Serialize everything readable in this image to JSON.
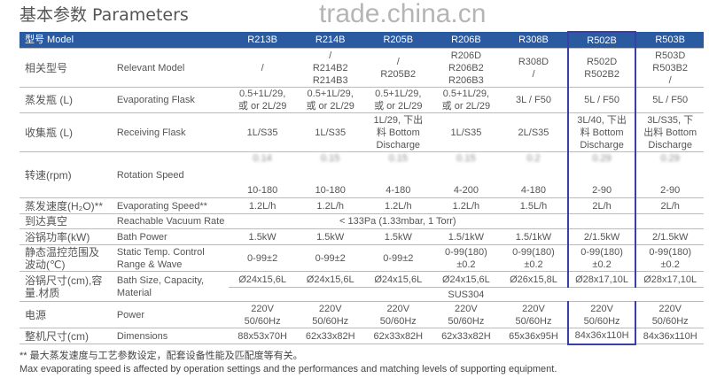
{
  "title": "基本参数 Parameters",
  "watermark": "trade.china.cn",
  "header": {
    "label": "型号 Model",
    "models": [
      "R213B",
      "R214B",
      "R205B",
      "R206B",
      "R308B",
      "R502B",
      "R503B"
    ]
  },
  "rows": [
    {
      "cn": "相关型号",
      "en": "Relevant Model",
      "v": [
        "/",
        "/\nR214B2\nR214B3",
        "/\nR205B2",
        "R206D\nR206B2\nR206B3",
        "R308D\n/",
        "R502D\nR502B2",
        "R503D\nR503B2\n/"
      ]
    },
    {
      "cn": "蒸发瓶 (L)",
      "en": "Evaporating Flask",
      "v": [
        "0.5+1L/29,\n或 or 2L/29",
        "0.5+1L/29,\n或 or 2L/29",
        "0.5+1L/29,\n或 or 2L/29",
        "0.5+1L/29,\n或 or 2L/29",
        "3L / F50",
        "5L / F50",
        "5L / F50"
      ]
    },
    {
      "cn": "收集瓶 (L)",
      "en": "Receiving Flask",
      "v": [
        "1L/S35",
        "1L/S35",
        "1L/29, 下出\n料 Bottom\nDischarge",
        "1L/S35",
        "2L/S35",
        "3L/40, 下出\n料 Bottom\nDischarge",
        "3L/S35, 下\n出料 Bottom\nDischarge"
      ]
    },
    {
      "cn": "转速(rpm)",
      "en": "Rotation Speed",
      "top": [
        "0.14",
        "0.15",
        "0.15",
        "0.15",
        "0.2",
        "0.29",
        "0.29"
      ],
      "v": [
        "10-180",
        "10-180",
        "4-180",
        "4-200",
        "4-180",
        "2-90",
        "2-90"
      ]
    },
    {
      "cn": "蒸发速度(H₂O)**",
      "en": "Evaporating Speed**",
      "v": [
        "1.2L/h",
        "1.2L/h",
        "1.2L/h",
        "1.2L/h",
        "1.5L/h",
        "2L/h",
        "2L/h"
      ]
    },
    {
      "cn": "到达真空",
      "en": "Reachable Vacuum Rate",
      "span": "< 133Pa (1.33mbar, 1 Torr)"
    },
    {
      "cn": "浴锅功率(kW)",
      "en": "Bath Power",
      "v": [
        "1.5kW",
        "1.5kW",
        "1.5kW",
        "1.5/1kW",
        "1.5/1kW",
        "2/1.5kW",
        "2/1.5kW"
      ]
    },
    {
      "cn": "静态温控范围及\n波动(℃)",
      "en": "Static Temp. Control\nRange & Wave",
      "v": [
        "0-99±2",
        "0-99±2",
        "0-99±2",
        "0-99(180)\n±0.2",
        "0-99(180)\n±0.2",
        "0-99(180)\n±0.2",
        "0-99(180)\n±0.2"
      ]
    },
    {
      "cn": "浴锅尺寸(cm),容\n量.材质",
      "en": "Bath Size, Capacity,\nMaterial",
      "v": [
        "Ø24x15,6L",
        "Ø24x15,6L",
        "Ø24x15,6L",
        "Ø24x15,6L",
        "Ø26x15,8L",
        "Ø28x17,10L",
        "Ø28x17,10L"
      ],
      "material": "SUS304"
    },
    {
      "cn": "电源",
      "en": "Power",
      "v": [
        "220V\n50/60Hz",
        "220V\n50/60Hz",
        "220V\n50/60Hz",
        "220V\n50/60Hz",
        "220V\n50/60Hz",
        "220V\n50/60Hz",
        "220V\n50/60Hz"
      ]
    },
    {
      "cn": "整机尺寸(cm)",
      "en": "Dimensions",
      "v": [
        "88x53x70H",
        "62x33x82H",
        "62x33x82H",
        "62x33x82H",
        "65x36x95H",
        "84x36x110H",
        "84x36x110H"
      ]
    }
  ],
  "notes": [
    "** 最大蒸发速度与工艺参数设定，配套设备性能及匹配度等有关。",
    "Max evaporating speed is affected by operation settings and the performances and matching levels of supporting equipment."
  ],
  "colors": {
    "header": "#2a5aa0",
    "highlight": "#3a3fa8"
  }
}
